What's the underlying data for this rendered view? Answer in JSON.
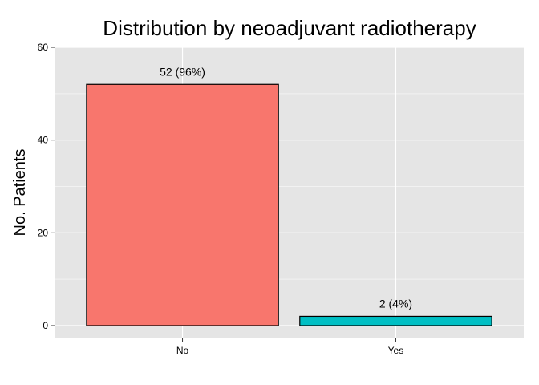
{
  "chart_data": {
    "type": "bar",
    "title": "Distribution by neoadjuvant radiotherapy",
    "xlabel": "",
    "ylabel": "No. Patients",
    "categories": [
      "No",
      "Yes"
    ],
    "values": [
      52,
      2
    ],
    "data_labels": [
      "52 (96%)",
      "2 (4%)"
    ],
    "colors": [
      "#F8766D",
      "#00BFC4"
    ],
    "ylim": [
      0,
      60
    ],
    "yticks": [
      0,
      20,
      40,
      60
    ],
    "ytick_labels": [
      "0",
      "20",
      "40",
      "60"
    ],
    "grid": true,
    "panel_background": "#E5E5E5",
    "gridline_color": "#FFFFFF",
    "bar_outline": "#000000"
  }
}
